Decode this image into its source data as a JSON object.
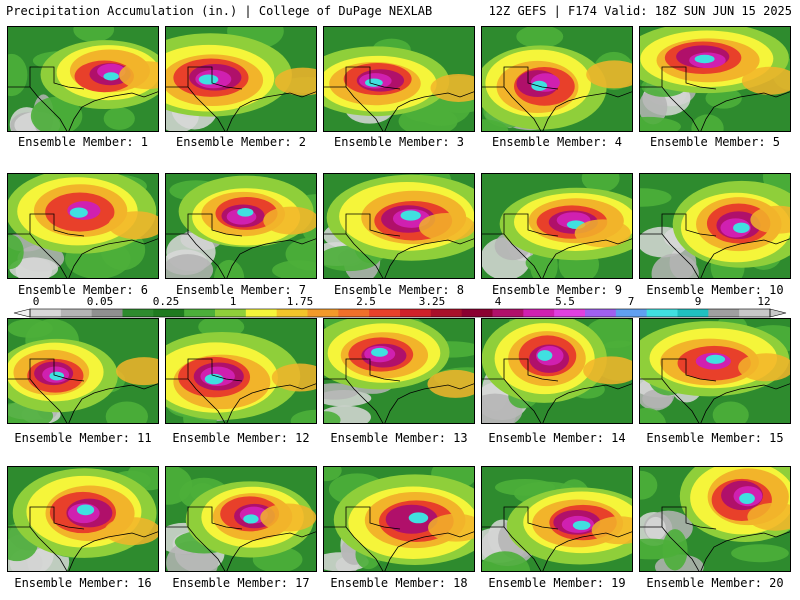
{
  "header": {
    "title": "Precipitation Accumulation (in.) | College of DuPage NEXLAB",
    "run_info": "12Z GEFS | F174 Valid: 18Z SUN JUN 15 2025"
  },
  "members": [
    {
      "label": "Ensemble Member: 1"
    },
    {
      "label": "Ensemble Member: 2"
    },
    {
      "label": "Ensemble Member: 3"
    },
    {
      "label": "Ensemble Member: 4"
    },
    {
      "label": "Ensemble Member: 5"
    },
    {
      "label": "Ensemble Member: 6"
    },
    {
      "label": "Ensemble Member: 7"
    },
    {
      "label": "Ensemble Member: 8"
    },
    {
      "label": "Ensemble Member: 9"
    },
    {
      "label": "Ensemble Member: 10"
    },
    {
      "label": "Ensemble Member: 11"
    },
    {
      "label": "Ensemble Member: 12"
    },
    {
      "label": "Ensemble Member: 13"
    },
    {
      "label": "Ensemble Member: 14"
    },
    {
      "label": "Ensemble Member: 15"
    },
    {
      "label": "Ensemble Member: 16"
    },
    {
      "label": "Ensemble Member: 17"
    },
    {
      "label": "Ensemble Member: 18"
    },
    {
      "label": "Ensemble Member: 19"
    },
    {
      "label": "Ensemble Member: 20"
    }
  ],
  "colorbar": {
    "tick_labels": [
      "0",
      "0.05",
      "0.25",
      "1",
      "1.75",
      "2.5",
      "3.25",
      "4",
      "5.5",
      "7",
      "9",
      "12"
    ],
    "colors": [
      "#d8d8d8",
      "#b4b4b4",
      "#909090",
      "#2e8b2e",
      "#1f7a1f",
      "#4caf3a",
      "#8fcf3a",
      "#f5f53a",
      "#f2c42a",
      "#f29a2a",
      "#f0702a",
      "#e8402a",
      "#d0202a",
      "#a8102a",
      "#8a0030",
      "#b0106a",
      "#d020b0",
      "#e040e0",
      "#a060f0",
      "#60a0f0",
      "#40e0e0",
      "#20c0c0",
      "#a0a0a0",
      "#c8c8c8"
    ]
  }
}
